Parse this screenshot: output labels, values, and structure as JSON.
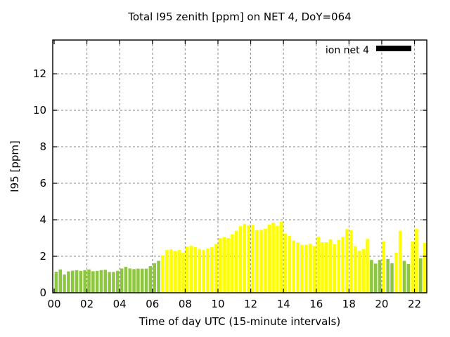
{
  "window": {
    "title": "Total I95 zenith [ppm] on NET 4, DoY=064"
  },
  "legend": {
    "label": "ion net 4",
    "swatch_color": "#000000",
    "position": "top-right-inside"
  },
  "chart_data": {
    "type": "bar",
    "title": "Total I95 zenith [ppm] on NET 4, DoY=064",
    "xlabel": "Time of day UTC (15-minute intervals)",
    "ylabel": "I95 [ppm]",
    "x_tick_labels": [
      "00",
      "02",
      "04",
      "06",
      "08",
      "10",
      "12",
      "14",
      "16",
      "18",
      "20",
      "22"
    ],
    "x_tick_hours": [
      0,
      2,
      4,
      6,
      8,
      10,
      12,
      14,
      16,
      18,
      20,
      22
    ],
    "y_ticks": [
      0,
      2,
      4,
      6,
      8,
      10,
      12
    ],
    "ylim": [
      0,
      13.85
    ],
    "xlim_hours": [
      0,
      22.75
    ],
    "grid": "dashed-gray-both-axes",
    "interval_minutes": 15,
    "bar_colors": {
      "g": "#8dc63f",
      "y": "#ffff00"
    },
    "categories": [
      "00:00",
      "00:15",
      "00:30",
      "00:45",
      "01:00",
      "01:15",
      "01:30",
      "01:45",
      "02:00",
      "02:15",
      "02:30",
      "02:45",
      "03:00",
      "03:15",
      "03:30",
      "03:45",
      "04:00",
      "04:15",
      "04:30",
      "04:45",
      "05:00",
      "05:15",
      "05:30",
      "05:45",
      "06:00",
      "06:15",
      "06:30",
      "06:45",
      "07:00",
      "07:15",
      "07:30",
      "07:45",
      "08:00",
      "08:15",
      "08:30",
      "08:45",
      "09:00",
      "09:15",
      "09:30",
      "09:45",
      "10:00",
      "10:15",
      "10:30",
      "10:45",
      "11:00",
      "11:15",
      "11:30",
      "11:45",
      "12:00",
      "12:15",
      "12:30",
      "12:45",
      "13:00",
      "13:15",
      "13:30",
      "13:45",
      "14:00",
      "14:15",
      "14:30",
      "14:45",
      "15:00",
      "15:15",
      "15:30",
      "15:45",
      "16:00",
      "16:15",
      "16:30",
      "16:45",
      "17:00",
      "17:15",
      "17:30",
      "17:45",
      "18:00",
      "18:15",
      "18:30",
      "18:45",
      "19:00",
      "19:15",
      "19:30",
      "19:45",
      "20:00",
      "20:15",
      "20:30",
      "20:45",
      "21:00",
      "21:15",
      "21:30",
      "21:45",
      "22:00",
      "22:15",
      "22:30"
    ],
    "series": [
      {
        "name": "ion net 4",
        "values": [
          1.15,
          1.28,
          1.0,
          1.17,
          1.21,
          1.24,
          1.2,
          1.24,
          1.28,
          1.18,
          1.2,
          1.24,
          1.26,
          1.14,
          1.14,
          1.2,
          1.33,
          1.42,
          1.33,
          1.3,
          1.32,
          1.32,
          1.32,
          1.46,
          1.62,
          1.75,
          2.05,
          2.34,
          2.38,
          2.3,
          2.34,
          2.2,
          2.53,
          2.57,
          2.5,
          2.4,
          2.34,
          2.42,
          2.5,
          2.67,
          3.0,
          3.05,
          3.0,
          3.2,
          3.4,
          3.65,
          3.78,
          3.7,
          3.72,
          3.42,
          3.45,
          3.51,
          3.73,
          3.84,
          3.67,
          3.9,
          3.25,
          3.12,
          2.86,
          2.76,
          2.63,
          2.63,
          2.7,
          2.56,
          3.08,
          2.77,
          2.77,
          2.93,
          2.67,
          2.89,
          3.06,
          3.49,
          3.42,
          2.56,
          2.3,
          2.4,
          2.95,
          1.8,
          1.6,
          1.8,
          2.82,
          1.85,
          1.62,
          2.2,
          3.4,
          1.75,
          1.58,
          2.82,
          3.5,
          1.88,
          2.73
        ],
        "color_keys": [
          "g",
          "g",
          "g",
          "g",
          "g",
          "g",
          "g",
          "g",
          "g",
          "g",
          "g",
          "g",
          "g",
          "g",
          "g",
          "g",
          "g",
          "g",
          "g",
          "g",
          "g",
          "g",
          "g",
          "g",
          "g",
          "g",
          "y",
          "y",
          "y",
          "y",
          "y",
          "y",
          "y",
          "y",
          "y",
          "y",
          "y",
          "y",
          "y",
          "y",
          "y",
          "y",
          "y",
          "y",
          "y",
          "y",
          "y",
          "y",
          "y",
          "y",
          "y",
          "y",
          "y",
          "y",
          "y",
          "y",
          "y",
          "y",
          "y",
          "y",
          "y",
          "y",
          "y",
          "y",
          "y",
          "y",
          "y",
          "y",
          "y",
          "y",
          "y",
          "y",
          "y",
          "y",
          "y",
          "y",
          "y",
          "g",
          "g",
          "g",
          "y",
          "g",
          "g",
          "y",
          "y",
          "g",
          "g",
          "y",
          "y",
          "g",
          "y"
        ]
      }
    ]
  }
}
